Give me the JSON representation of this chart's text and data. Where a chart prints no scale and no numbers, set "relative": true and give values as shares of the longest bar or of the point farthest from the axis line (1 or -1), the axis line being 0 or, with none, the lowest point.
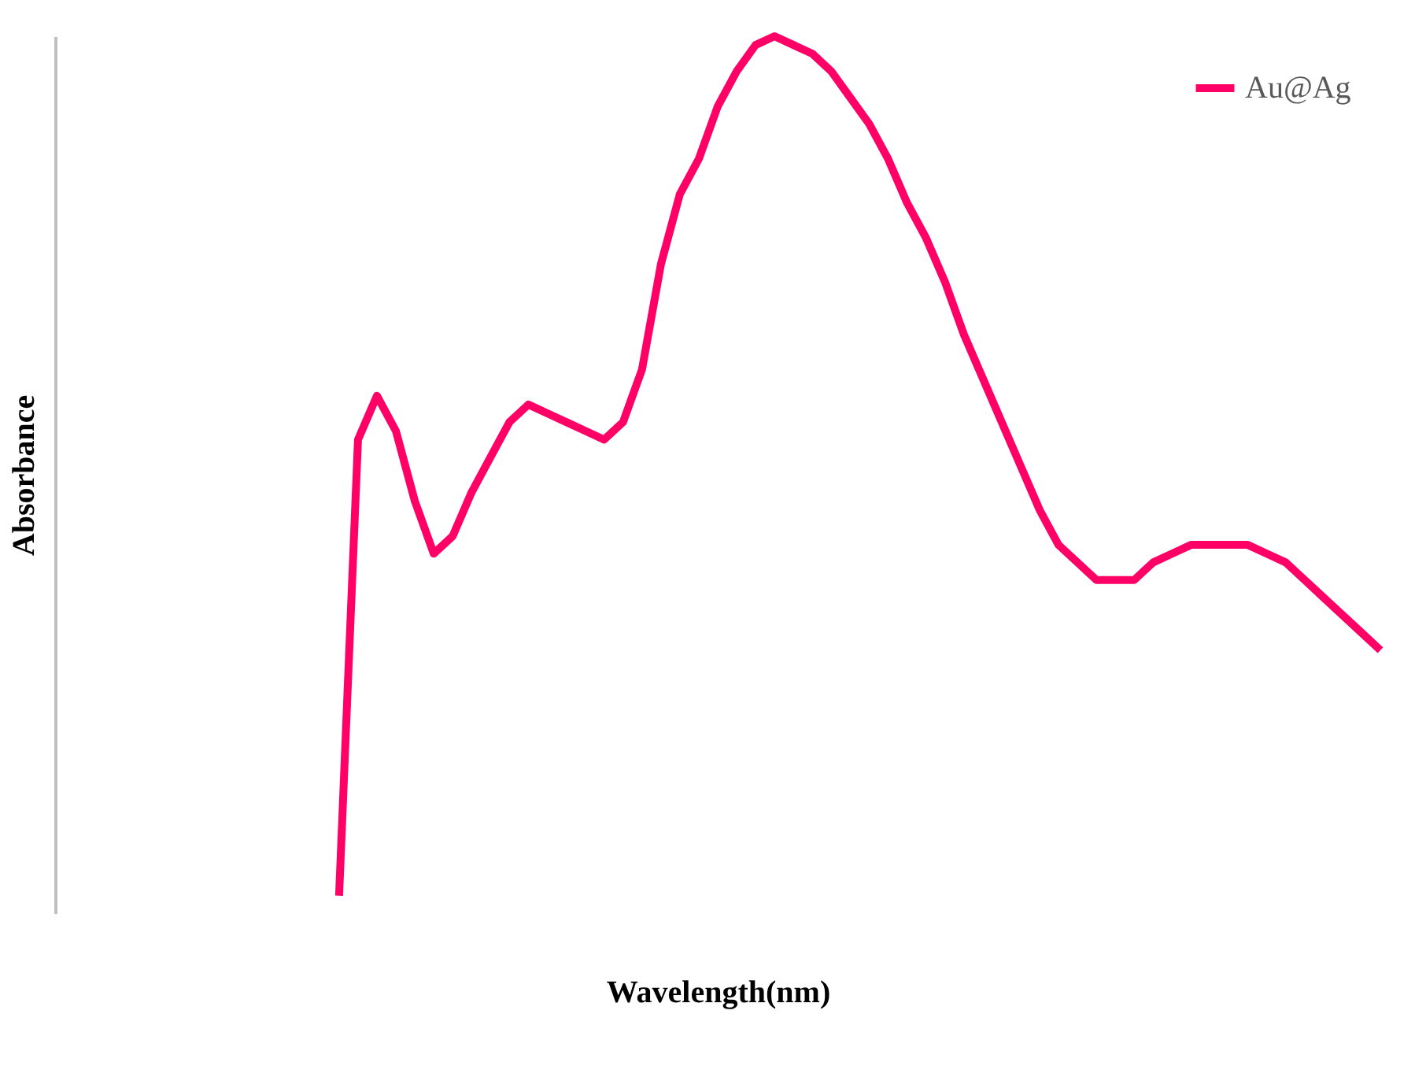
{
  "chart_data": {
    "type": "line",
    "relative": true,
    "xlabel": "Wavelength(nm)",
    "ylabel": "Absorbance",
    "categories": [
      null,
      null,
      null,
      null,
      null,
      null,
      null,
      null,
      null,
      null,
      null,
      null,
      null,
      null,
      null,
      null,
      null,
      null,
      null,
      null,
      null,
      null,
      null,
      null,
      null,
      null,
      null,
      null,
      null,
      null,
      null,
      null,
      null,
      null,
      null,
      null,
      null,
      null,
      null,
      null,
      null,
      null,
      null,
      null,
      null,
      null,
      null,
      null,
      null,
      null,
      null,
      null,
      null,
      null,
      null,
      null,
      null,
      null,
      null,
      null,
      null,
      null,
      null,
      null,
      null,
      null,
      null,
      null,
      null,
      null,
      null
    ],
    "series": [
      {
        "name": "Au@Ag",
        "color": "#ff0066",
        "values": [
          null,
          null,
          null,
          null,
          null,
          null,
          null,
          null,
          null,
          null,
          null,
          null,
          null,
          null,
          null,
          0.02,
          0.54,
          0.59,
          0.55,
          0.47,
          0.41,
          0.43,
          0.48,
          0.52,
          0.56,
          0.58,
          0.57,
          0.56,
          0.55,
          0.54,
          0.56,
          0.62,
          0.74,
          0.82,
          0.86,
          0.92,
          0.96,
          0.99,
          1.0,
          0.99,
          0.98,
          0.96,
          0.93,
          0.9,
          0.86,
          0.81,
          0.77,
          0.72,
          0.66,
          0.61,
          0.56,
          0.51,
          0.46,
          0.42,
          0.4,
          0.38,
          0.38,
          0.38,
          0.4,
          0.41,
          0.42,
          0.42,
          0.42,
          0.42,
          0.41,
          0.4,
          0.38,
          0.36,
          0.34,
          0.32,
          0.3
        ]
      }
    ],
    "legend": "top right",
    "grid": false,
    "marker": "none",
    "line_style": "solid"
  }
}
